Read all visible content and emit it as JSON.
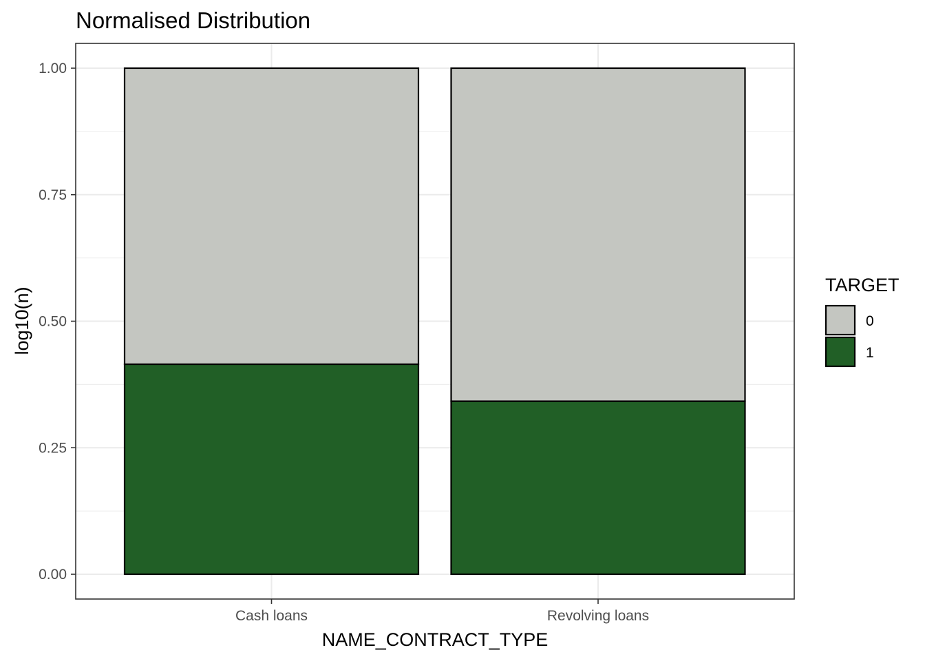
{
  "chart_data": {
    "type": "bar",
    "stacked": true,
    "title": "Normalised Distribution",
    "xlabel": "NAME_CONTRACT_TYPE",
    "ylabel": "log10(n)",
    "ylim": [
      0,
      1
    ],
    "yticks": [
      "0.00",
      "0.25",
      "0.50",
      "0.75",
      "1.00"
    ],
    "ytick_values": [
      0,
      0.25,
      0.5,
      0.75,
      1.0
    ],
    "categories": [
      "Cash loans",
      "Revolving loans"
    ],
    "series": [
      {
        "name": "1",
        "color": "#215f26",
        "values": [
          0.415,
          0.342
        ]
      },
      {
        "name": "0",
        "color": "#c4c6c1",
        "values": [
          0.585,
          0.658
        ]
      }
    ],
    "legend": {
      "title": "TARGET",
      "position": "right",
      "items": [
        {
          "label": "0",
          "color": "#c4c6c1"
        },
        {
          "label": "1",
          "color": "#215f26"
        }
      ]
    },
    "grid": true
  }
}
